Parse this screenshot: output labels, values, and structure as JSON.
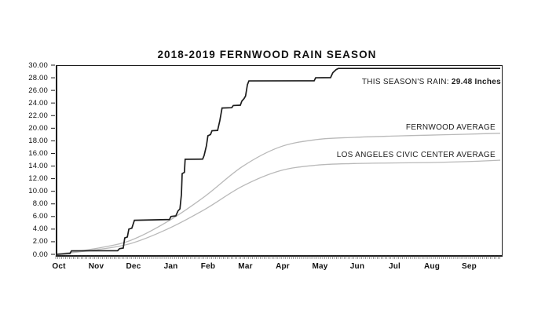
{
  "page": {
    "background": "#ffffff"
  },
  "chart_data": {
    "type": "line",
    "title": "2018-2019 FERNWOOD RAIN SEASON",
    "xlabel": "",
    "ylabel": "",
    "ylim": [
      0,
      30
    ],
    "y_tick_step": 2,
    "y_tick_labels": [
      "30.00",
      "28.00",
      "26.00",
      "24.00",
      "22.00",
      "20.00",
      "18.00",
      "16.00",
      "14.00",
      "12.00",
      "10.00",
      "8.00",
      "6.00",
      "4.00",
      "2.00",
      "0.00"
    ],
    "x_tick_labels": [
      "Oct",
      "Nov",
      "Dec",
      "Jan",
      "Feb",
      "Mar",
      "Apr",
      "May",
      "Jun",
      "Jul",
      "Aug",
      "Sep"
    ],
    "x_range_months": [
      0,
      11.92
    ],
    "x_minor_ticks": "daily",
    "grid": false,
    "legend_position": "inline-right",
    "frame_color": "#1c1c1c",
    "series": [
      {
        "name": "this-season-rain",
        "label_prefix": "THIS SEASON'S RAIN: ",
        "label_value": "29.48 Inches",
        "total_inches": 29.48,
        "color": "#1c1c1c",
        "line_width": 1.7,
        "line_style": "step",
        "points": [
          [
            0,
            0
          ],
          [
            0.32,
            0.1
          ],
          [
            0.38,
            0.12
          ],
          [
            0.42,
            0.55
          ],
          [
            1.66,
            0.58
          ],
          [
            1.71,
            0.9
          ],
          [
            1.81,
            1.0
          ],
          [
            1.85,
            2.6
          ],
          [
            1.92,
            2.75
          ],
          [
            1.96,
            4.0
          ],
          [
            2.04,
            4.15
          ],
          [
            2.11,
            5.4
          ],
          [
            3.05,
            5.52
          ],
          [
            3.09,
            6.0
          ],
          [
            3.22,
            6.1
          ],
          [
            3.28,
            6.9
          ],
          [
            3.33,
            7.2
          ],
          [
            3.37,
            9.5
          ],
          [
            3.39,
            12.8
          ],
          [
            3.45,
            13.0
          ],
          [
            3.47,
            15.08
          ],
          [
            3.94,
            15.1
          ],
          [
            3.98,
            15.7
          ],
          [
            4.04,
            17.2
          ],
          [
            4.08,
            18.8
          ],
          [
            4.15,
            19.0
          ],
          [
            4.19,
            19.6
          ],
          [
            4.34,
            19.65
          ],
          [
            4.4,
            21.2
          ],
          [
            4.46,
            23.2
          ],
          [
            4.72,
            23.25
          ],
          [
            4.76,
            23.6
          ],
          [
            4.95,
            23.65
          ],
          [
            4.99,
            24.3
          ],
          [
            5.05,
            24.7
          ],
          [
            5.09,
            25.1
          ],
          [
            5.14,
            26.9
          ],
          [
            5.18,
            27.5
          ],
          [
            6.93,
            27.52
          ],
          [
            6.97,
            28.0
          ],
          [
            7.37,
            28.02
          ],
          [
            7.43,
            28.8
          ],
          [
            7.52,
            29.3
          ],
          [
            7.58,
            29.48
          ],
          [
            11.92,
            29.48
          ]
        ]
      },
      {
        "name": "fernwood-average",
        "label": "FERNWOOD AVERAGE",
        "total_inches": 19.2,
        "color": "#b9b9b9",
        "line_width": 1.3,
        "line_style": "smooth",
        "points": [
          [
            0,
            0
          ],
          [
            1,
            0.85
          ],
          [
            2,
            2.2
          ],
          [
            3,
            5.2
          ],
          [
            4,
            9.2
          ],
          [
            5,
            13.9
          ],
          [
            6,
            17.0
          ],
          [
            7,
            18.2
          ],
          [
            8,
            18.55
          ],
          [
            9,
            18.75
          ],
          [
            10,
            18.9
          ],
          [
            11,
            19.05
          ],
          [
            11.92,
            19.2
          ]
        ]
      },
      {
        "name": "la-civic-center-average",
        "label": "LOS ANGELES CIVIC CENTER AVERAGE",
        "total_inches": 14.93,
        "color": "#b9b9b9",
        "line_width": 1.3,
        "line_style": "smooth",
        "points": [
          [
            0,
            0
          ],
          [
            1,
            0.66
          ],
          [
            2,
            1.7
          ],
          [
            3,
            4.02
          ],
          [
            4,
            7.14
          ],
          [
            5,
            10.79
          ],
          [
            6,
            13.23
          ],
          [
            7,
            14.14
          ],
          [
            8,
            14.4
          ],
          [
            9,
            14.49
          ],
          [
            10,
            14.55
          ],
          [
            11,
            14.7
          ],
          [
            11.92,
            14.93
          ]
        ]
      }
    ]
  }
}
